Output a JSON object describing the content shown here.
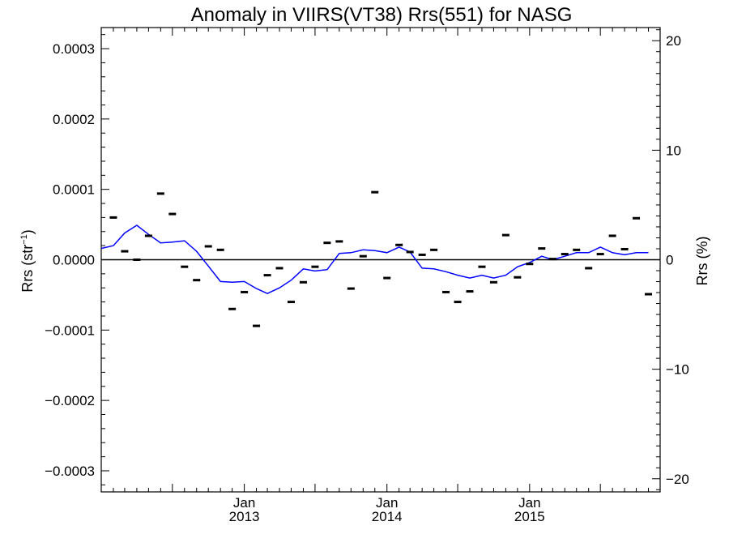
{
  "chart_data": {
    "type": "line",
    "title": "Anomaly in VIIRS(VT38) Rrs(551) for NASG",
    "ylabel": "Rrs (str",
    "ylabel_sup": "−1",
    "ylabel_close": ")",
    "y2label": "Rrs (%)",
    "xlim": [
      "2012-01-01",
      "2015-12-01"
    ],
    "ylim": [
      -0.00033,
      0.00033
    ],
    "y2lim": [
      -21.2,
      21.2
    ],
    "grid": false,
    "legend": "none",
    "colors": {
      "line": "#0000ff",
      "markers": "#000000",
      "zero_line": "#000000"
    },
    "x_ticks": [
      {
        "date": "2013-01-01",
        "month": "Jan",
        "year": "2013"
      },
      {
        "date": "2014-01-01",
        "month": "Jan",
        "year": "2014"
      },
      {
        "date": "2015-01-01",
        "month": "Jan",
        "year": "2015"
      }
    ],
    "y_ticks": [
      {
        "value": 0.0003,
        "label": "0.0003"
      },
      {
        "value": 0.0002,
        "label": "0.0002"
      },
      {
        "value": 0.0001,
        "label": "0.0001"
      },
      {
        "value": 0.0,
        "label": "0.0000"
      },
      {
        "value": -0.0001,
        "label": "−0.0001"
      },
      {
        "value": -0.0002,
        "label": "−0.0002"
      },
      {
        "value": -0.0003,
        "label": "−0.0003"
      }
    ],
    "y2_ticks": [
      {
        "value": 20,
        "label": "20"
      },
      {
        "value": 10,
        "label": "10"
      },
      {
        "value": 0,
        "label": "0"
      },
      {
        "value": -10,
        "label": "−10"
      },
      {
        "value": -20,
        "label": "−20"
      }
    ],
    "series": [
      {
        "kind": "line",
        "points": [
          [
            "2012-01-01",
            1.6e-05
          ],
          [
            "2012-02-01",
            2e-05
          ],
          [
            "2012-03-01",
            3.8e-05
          ],
          [
            "2012-04-01",
            4.9e-05
          ],
          [
            "2012-05-01",
            3.6e-05
          ],
          [
            "2012-06-01",
            2.4e-05
          ],
          [
            "2012-07-01",
            2.5e-05
          ],
          [
            "2012-08-01",
            2.7e-05
          ],
          [
            "2012-09-01",
            1.2e-05
          ],
          [
            "2012-10-01",
            -9e-06
          ],
          [
            "2012-11-01",
            -3.1e-05
          ],
          [
            "2012-12-01",
            -3.2e-05
          ],
          [
            "2013-01-01",
            -3.1e-05
          ],
          [
            "2013-02-01",
            -4.1e-05
          ],
          [
            "2013-03-01",
            -4.8e-05
          ],
          [
            "2013-04-01",
            -4e-05
          ],
          [
            "2013-05-01",
            -2.9e-05
          ],
          [
            "2013-06-01",
            -1.3e-05
          ],
          [
            "2013-07-01",
            -1.6e-05
          ],
          [
            "2013-08-01",
            -1.4e-05
          ],
          [
            "2013-09-01",
            9e-06
          ],
          [
            "2013-10-01",
            1e-05
          ],
          [
            "2013-11-01",
            1.4e-05
          ],
          [
            "2013-12-01",
            1.3e-05
          ],
          [
            "2014-01-01",
            1e-05
          ],
          [
            "2014-02-01",
            1.8e-05
          ],
          [
            "2014-03-01",
            1.1e-05
          ],
          [
            "2014-04-01",
            -1.2e-05
          ],
          [
            "2014-05-01",
            -1.3e-05
          ],
          [
            "2014-06-01",
            -1.7e-05
          ],
          [
            "2014-07-01",
            -2.2e-05
          ],
          [
            "2014-08-01",
            -2.6e-05
          ],
          [
            "2014-09-01",
            -2.2e-05
          ],
          [
            "2014-10-01",
            -2.6e-05
          ],
          [
            "2014-11-01",
            -2.2e-05
          ],
          [
            "2014-12-01",
            -1e-05
          ],
          [
            "2015-01-01",
            -4e-06
          ],
          [
            "2015-02-01",
            5e-06
          ],
          [
            "2015-03-01",
            0.0
          ],
          [
            "2015-04-01",
            5e-06
          ],
          [
            "2015-05-01",
            1e-05
          ],
          [
            "2015-06-01",
            1e-05
          ],
          [
            "2015-07-01",
            1.8e-05
          ],
          [
            "2015-08-01",
            1e-05
          ],
          [
            "2015-09-01",
            7e-06
          ],
          [
            "2015-10-01",
            1e-05
          ],
          [
            "2015-11-01",
            1e-05
          ]
        ]
      },
      {
        "kind": "markers_with_error_bars",
        "points": [
          [
            "2012-02-01",
            6e-05
          ],
          [
            "2012-03-01",
            1.2e-05
          ],
          [
            "2012-04-01",
            0.0
          ],
          [
            "2012-05-01",
            3.4e-05
          ],
          [
            "2012-06-01",
            9.4e-05
          ],
          [
            "2012-07-01",
            6.5e-05
          ],
          [
            "2012-08-01",
            -1e-05
          ],
          [
            "2012-09-01",
            -2.9e-05
          ],
          [
            "2012-10-01",
            1.9e-05
          ],
          [
            "2012-11-01",
            1.4e-05
          ],
          [
            "2012-12-01",
            -7e-05
          ],
          [
            "2013-01-01",
            -4.6e-05
          ],
          [
            "2013-02-01",
            -9.4e-05
          ],
          [
            "2013-03-01",
            -2.2e-05
          ],
          [
            "2013-04-01",
            -1.2e-05
          ],
          [
            "2013-05-01",
            -6e-05
          ],
          [
            "2013-06-01",
            -3.2e-05
          ],
          [
            "2013-07-01",
            -1e-05
          ],
          [
            "2013-08-01",
            2.4e-05
          ],
          [
            "2013-09-01",
            2.6e-05
          ],
          [
            "2013-10-01",
            -4.1e-05
          ],
          [
            "2013-11-01",
            5e-06
          ],
          [
            "2013-12-01",
            9.6e-05
          ],
          [
            "2014-01-01",
            -2.6e-05
          ],
          [
            "2014-02-01",
            2.1e-05
          ],
          [
            "2014-03-01",
            1.1e-05
          ],
          [
            "2014-04-01",
            7e-06
          ],
          [
            "2014-05-01",
            1.4e-05
          ],
          [
            "2014-06-01",
            -4.6e-05
          ],
          [
            "2014-07-01",
            -6e-05
          ],
          [
            "2014-08-01",
            -4.5e-05
          ],
          [
            "2014-09-01",
            -1e-05
          ],
          [
            "2014-10-01",
            -3.2e-05
          ],
          [
            "2014-11-01",
            3.5e-05
          ],
          [
            "2014-12-01",
            -2.5e-05
          ],
          [
            "2015-01-01",
            -6e-06
          ],
          [
            "2015-02-01",
            1.6e-05
          ],
          [
            "2015-03-01",
            1e-06
          ],
          [
            "2015-04-01",
            8e-06
          ],
          [
            "2015-05-01",
            1.4e-05
          ],
          [
            "2015-06-01",
            -1.2e-05
          ],
          [
            "2015-07-01",
            8e-06
          ],
          [
            "2015-08-01",
            3.4e-05
          ],
          [
            "2015-09-01",
            1.5e-05
          ],
          [
            "2015-10-01",
            5.9e-05
          ],
          [
            "2015-11-01",
            -4.9e-05
          ]
        ]
      }
    ]
  }
}
